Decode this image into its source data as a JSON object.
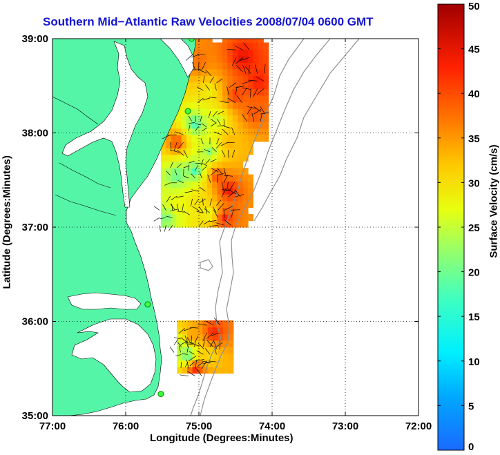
{
  "chart_data": {
    "type": "heatmap",
    "title": "Southern Mid−Atlantic Raw Velocities 2008/07/04 0600 GMT",
    "xlabel": "Longitude (Degrees:Minutes)",
    "ylabel": "Latitude (Degrees:Minutes)",
    "xlim": [
      -77,
      -72
    ],
    "ylim": [
      35,
      39
    ],
    "xticks": [
      {
        "value": -77,
        "label": "77:00"
      },
      {
        "value": -76,
        "label": "76:00"
      },
      {
        "value": -75,
        "label": "75:00"
      },
      {
        "value": -74,
        "label": "74:00"
      },
      {
        "value": -73,
        "label": "73:00"
      },
      {
        "value": -72,
        "label": "72:00"
      }
    ],
    "yticks": [
      {
        "value": 35,
        "label": "35:00"
      },
      {
        "value": 36,
        "label": "36:00"
      },
      {
        "value": 37,
        "label": "37:00"
      },
      {
        "value": 38,
        "label": "38:00"
      },
      {
        "value": 39,
        "label": "39:00"
      }
    ],
    "grid": true,
    "colorbar": {
      "label": "Surface Velocity (cm/s)",
      "range": [
        0,
        50
      ],
      "ticks": [
        0,
        5,
        10,
        15,
        20,
        25,
        30,
        35,
        40,
        45,
        50
      ],
      "colormap": "jet"
    },
    "colors": {
      "land": "#55f5a8",
      "title": "#1414d2",
      "contour": "#909090"
    },
    "sites": [
      {
        "lon": -75.1,
        "lat": 39.0
      },
      {
        "lon": -75.15,
        "lat": 38.23
      },
      {
        "lon": -75.7,
        "lat": 36.18
      },
      {
        "lon": -75.52,
        "lat": 35.23
      }
    ],
    "regions": [
      {
        "name": "north",
        "lon": [
          -75.52,
          -74.1
        ],
        "lat": [
          37.0,
          38.97
        ],
        "points": [
          {
            "lon": -75.0,
            "lat": 38.75,
            "speed": 38
          },
          {
            "lon": -74.4,
            "lat": 38.8,
            "speed": 46
          },
          {
            "lon": -74.2,
            "lat": 38.55,
            "speed": 44
          },
          {
            "lon": -74.85,
            "lat": 38.45,
            "speed": 28
          },
          {
            "lon": -74.5,
            "lat": 38.4,
            "speed": 42
          },
          {
            "lon": -74.25,
            "lat": 38.2,
            "speed": 40
          },
          {
            "lon": -75.05,
            "lat": 38.1,
            "speed": 16
          },
          {
            "lon": -74.75,
            "lat": 38.15,
            "speed": 24
          },
          {
            "lon": -75.3,
            "lat": 37.9,
            "speed": 42
          },
          {
            "lon": -74.6,
            "lat": 37.9,
            "speed": 34
          },
          {
            "lon": -74.85,
            "lat": 37.8,
            "speed": 20
          },
          {
            "lon": -75.3,
            "lat": 37.55,
            "speed": 18
          },
          {
            "lon": -75.05,
            "lat": 37.6,
            "speed": 16
          },
          {
            "lon": -74.75,
            "lat": 37.55,
            "speed": 42
          },
          {
            "lon": -74.6,
            "lat": 37.4,
            "speed": 46
          },
          {
            "lon": -75.3,
            "lat": 37.25,
            "speed": 28
          },
          {
            "lon": -75.0,
            "lat": 37.3,
            "speed": 30
          },
          {
            "lon": -75.45,
            "lat": 37.1,
            "speed": 20
          },
          {
            "lon": -74.85,
            "lat": 37.15,
            "speed": 26
          },
          {
            "lon": -74.65,
            "lat": 37.1,
            "speed": 44
          }
        ]
      },
      {
        "name": "south",
        "lon": [
          -75.3,
          -74.6
        ],
        "lat": [
          35.45,
          35.95
        ],
        "points": [
          {
            "lon": -75.1,
            "lat": 35.85,
            "speed": 36
          },
          {
            "lon": -74.8,
            "lat": 35.88,
            "speed": 44
          },
          {
            "lon": -75.15,
            "lat": 35.65,
            "speed": 16
          },
          {
            "lon": -74.85,
            "lat": 35.65,
            "speed": 30
          },
          {
            "lon": -75.05,
            "lat": 35.5,
            "speed": 44
          },
          {
            "lon": -75.25,
            "lat": 35.75,
            "speed": 24
          }
        ]
      }
    ]
  }
}
